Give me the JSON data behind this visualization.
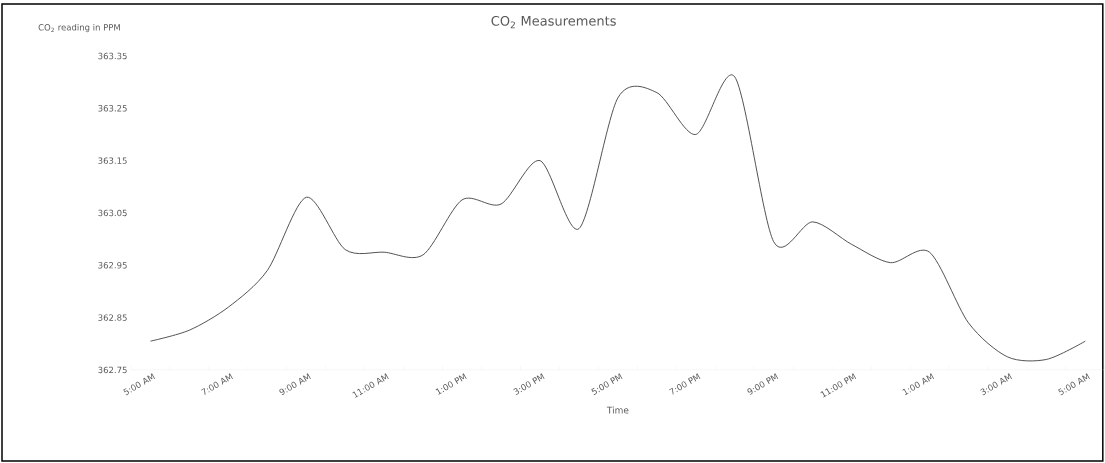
{
  "chart_data": {
    "type": "line",
    "title": "CO$_{2}$  Measurements",
    "ylabel": "CO$_{2}$ reading in PPM",
    "xlabel": "Time",
    "categories": [
      "5:00 AM",
      null,
      "7:00 AM",
      null,
      "9:00 AM",
      null,
      "11:00 AM",
      null,
      "1:00 PM",
      null,
      "3:00 PM",
      null,
      "5:00 PM",
      null,
      "7:00 PM",
      null,
      "9:00 PM",
      null,
      "11:00 PM",
      null,
      "1:00 AM",
      null,
      "3:00 AM",
      null,
      "5:00 AM"
    ],
    "series": [
      {
        "color": "#404040",
        "values": [
          362.805,
          362.826,
          362.87,
          362.94,
          363.08,
          362.98,
          362.975,
          362.97,
          363.075,
          363.067,
          363.15,
          363.02,
          363.27,
          363.28,
          363.2,
          363.31,
          362.995,
          363.033,
          362.99,
          362.955,
          362.975,
          362.84,
          362.775,
          362.77,
          362.805
        ]
      }
    ],
    "ylim": [
      362.75,
      363.35
    ],
    "yticks": [
      362.75,
      362.85,
      362.95,
      363.05,
      363.15,
      363.25,
      363.35
    ],
    "grid": false,
    "legend": false,
    "marker": "none",
    "line_style": "solid"
  }
}
